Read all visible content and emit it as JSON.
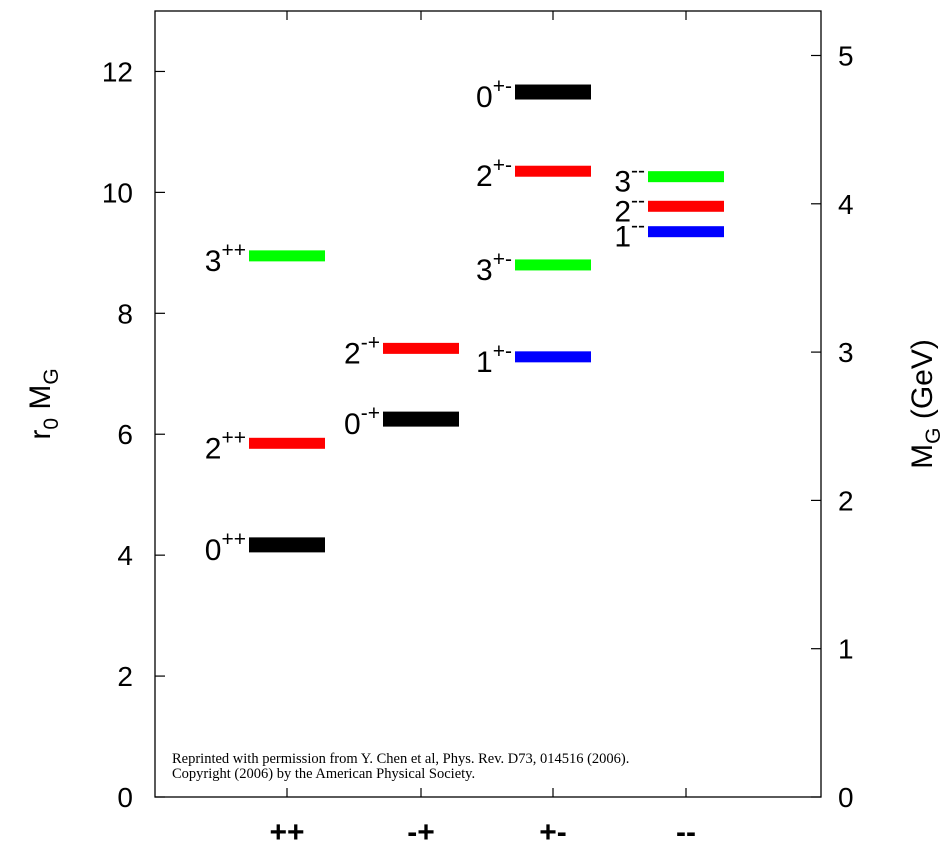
{
  "chart_data": {
    "type": "bar",
    "categories": [
      "++",
      "-+",
      "+-",
      "--"
    ],
    "xlabel": "",
    "ylabel_left": {
      "main": "r",
      "sub0": "0",
      "mid": " M",
      "sub1": "G"
    },
    "ylabel_right": {
      "main": "M",
      "sub": "G",
      "rest": " (GeV)"
    },
    "ylim_left": [
      0,
      13
    ],
    "ylim_right": [
      0,
      5.3
    ],
    "yticks_left": [
      0,
      2,
      4,
      6,
      8,
      10,
      12
    ],
    "yticks_right": [
      0,
      1,
      2,
      3,
      4,
      5
    ],
    "grid": false,
    "colors": {
      "0": "#000000",
      "1": "#0000ff",
      "2": "#ff0000",
      "3": "#00ff00"
    },
    "states": [
      {
        "category": "++",
        "J": "0",
        "PC": "++",
        "r0MG": 4.17
      },
      {
        "category": "++",
        "J": "2",
        "PC": "++",
        "r0MG": 5.85
      },
      {
        "category": "++",
        "J": "3",
        "PC": "++",
        "r0MG": 8.95
      },
      {
        "category": "-+",
        "J": "0",
        "PC": "-+",
        "r0MG": 6.25
      },
      {
        "category": "-+",
        "J": "2",
        "PC": "-+",
        "r0MG": 7.42
      },
      {
        "category": "+-",
        "J": "1",
        "PC": "+-",
        "r0MG": 7.28
      },
      {
        "category": "+-",
        "J": "3",
        "PC": "+-",
        "r0MG": 8.8
      },
      {
        "category": "+-",
        "J": "2",
        "PC": "+-",
        "r0MG": 10.35
      },
      {
        "category": "+-",
        "J": "0",
        "PC": "+-",
        "r0MG": 11.66
      },
      {
        "category": "--",
        "J": "1",
        "PC": "--",
        "r0MG": 9.35
      },
      {
        "category": "--",
        "J": "2",
        "PC": "--",
        "r0MG": 9.77
      },
      {
        "category": "--",
        "J": "3",
        "PC": "--",
        "r0MG": 10.26
      }
    ],
    "annotation": {
      "line1": "Reprinted with permission from Y. Chen et al, Phys. Rev. D73, 014516 (2006).",
      "line2": "Copyright (2006) by the American Physical Society."
    }
  }
}
